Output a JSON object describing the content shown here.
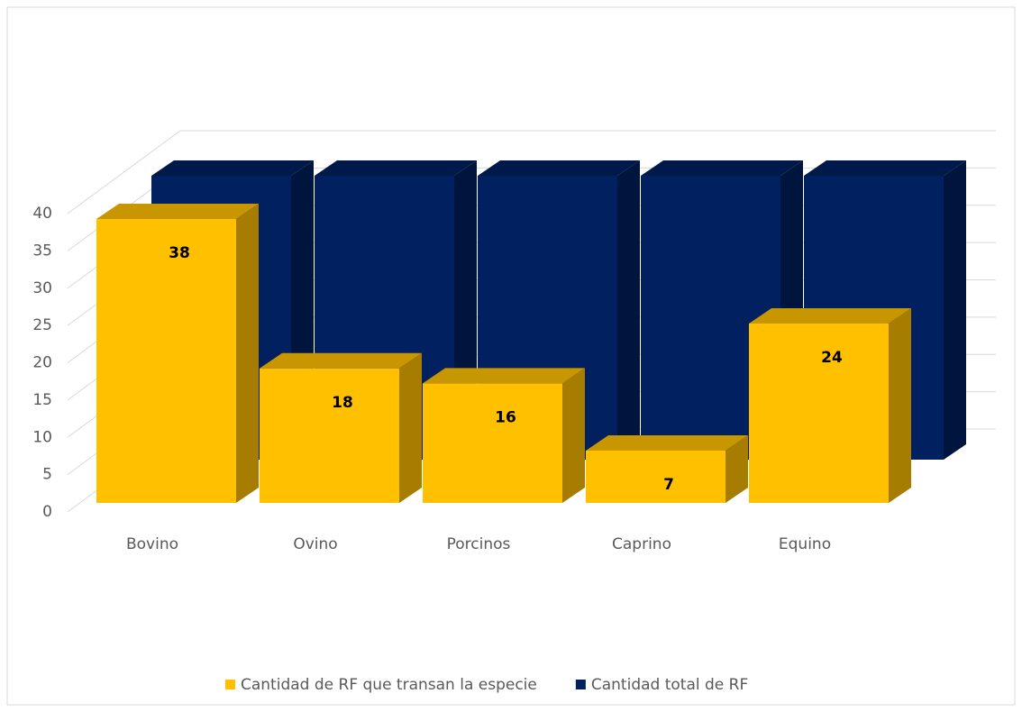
{
  "chart_data": {
    "type": "bar3d",
    "categories": [
      "Bovino",
      "Ovino",
      "Porcinos",
      "Caprino",
      "Equino"
    ],
    "series": [
      {
        "name": "Cantidad de RF que transan la especie",
        "color": "#ffc000",
        "values": [
          38,
          18,
          16,
          7,
          24
        ]
      },
      {
        "name": "Cantidad total de RF",
        "color": "#002060",
        "values": [
          38,
          38,
          38,
          38,
          38
        ]
      }
    ],
    "ylim": [
      0,
      40
    ],
    "yticks": [
      0,
      5,
      10,
      15,
      20,
      25,
      30,
      35,
      40
    ],
    "grid": true,
    "legend": "bottom"
  }
}
